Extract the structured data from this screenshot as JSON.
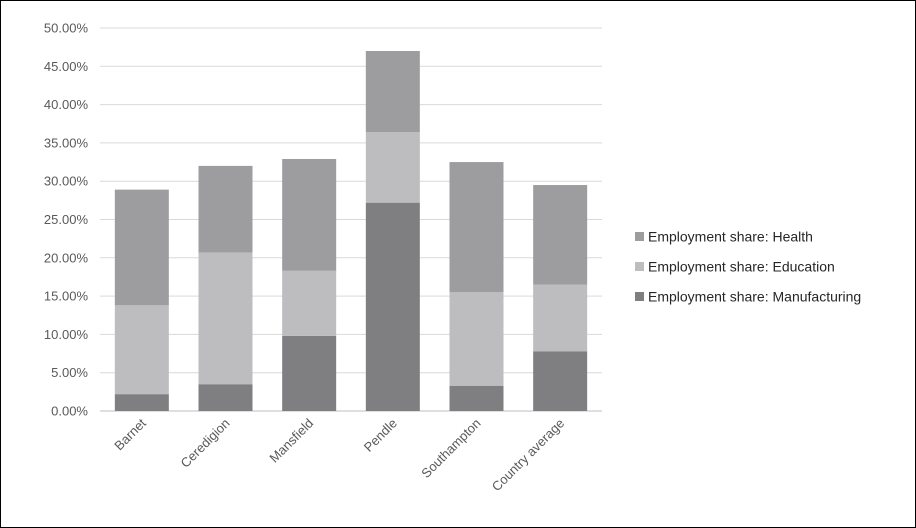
{
  "chart_data": {
    "type": "bar",
    "stacked": true,
    "categories": [
      "Barnet",
      "Ceredigion",
      "Mansfield",
      "Pendle",
      "Southampton",
      "Country average"
    ],
    "series": [
      {
        "name": "Employment share: Manufacturing",
        "values": [
          2.2,
          3.5,
          9.8,
          27.2,
          3.3,
          7.8
        ],
        "color": "#7f7f81"
      },
      {
        "name": "Employment share: Education",
        "values": [
          11.6,
          17.2,
          8.5,
          9.2,
          12.2,
          8.7
        ],
        "color": "#bdbcbe"
      },
      {
        "name": "Employment share: Health",
        "values": [
          15.1,
          11.3,
          14.6,
          10.6,
          17.0,
          13.0
        ],
        "color": "#9d9d9f"
      }
    ],
    "yticks": [
      "0.00%",
      "5.00%",
      "10.00%",
      "15.00%",
      "20.00%",
      "25.00%",
      "30.00%",
      "35.00%",
      "40.00%",
      "45.00%",
      "50.00%"
    ],
    "ylim": [
      0,
      50
    ],
    "grid": true,
    "legend": "right",
    "legend_order": [
      2,
      1,
      0
    ]
  }
}
